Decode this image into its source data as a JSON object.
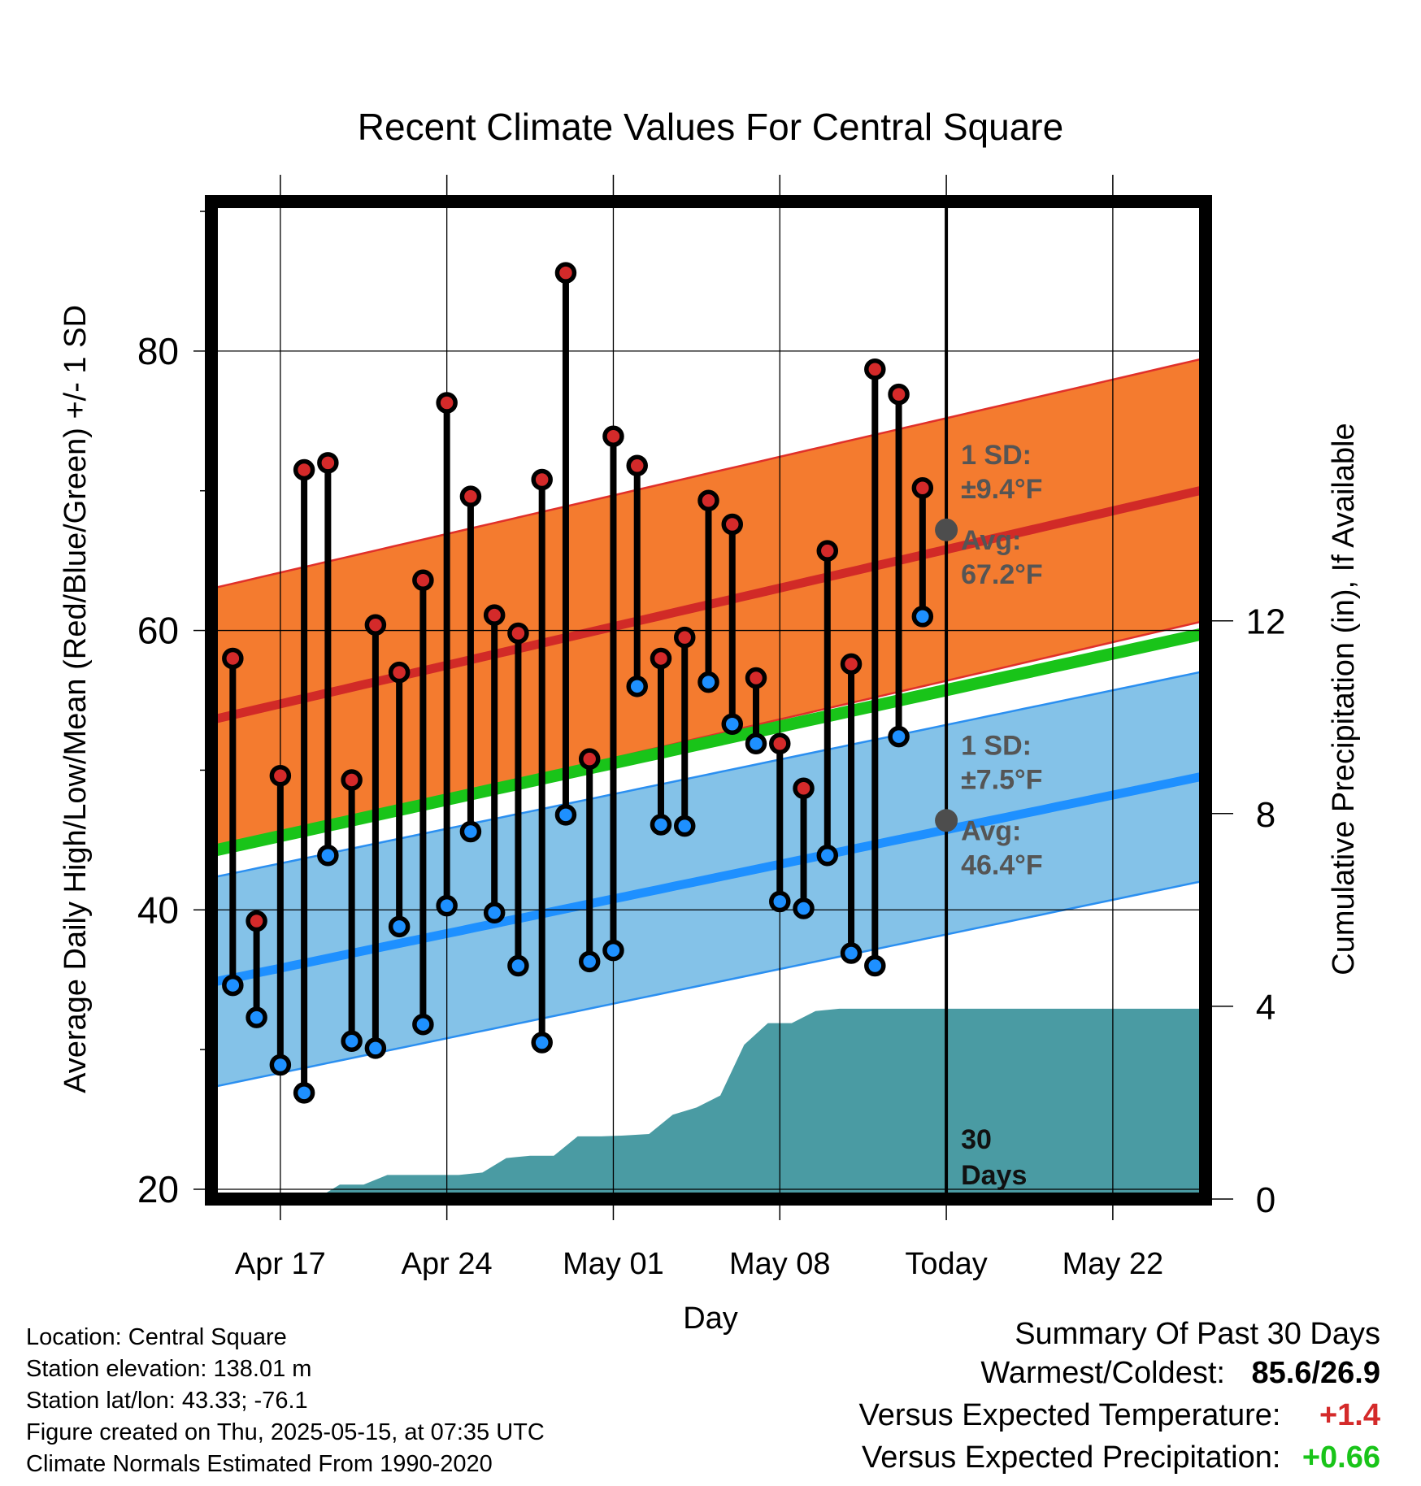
{
  "chart_data": {
    "type": "line",
    "title": "Recent Climate Values For Central Square",
    "xlabel": "Day",
    "ylabel": "Average Daily High/Low/Mean (Red/Blue/Green) +/- 1 SD",
    "y2label": "Cumulative Precipitation (in), If Available",
    "ylim": [
      19.3,
      90.7
    ],
    "y2lim": [
      0,
      20.7
    ],
    "yticks": [
      20,
      40,
      60,
      80
    ],
    "y2ticks": [
      0,
      4,
      8,
      12
    ],
    "xlim": [
      -2.9,
      38.9
    ],
    "xticks": [
      {
        "day": 0,
        "label": "Apr 17"
      },
      {
        "day": 7,
        "label": "Apr 24"
      },
      {
        "day": 14,
        "label": "May 01"
      },
      {
        "day": 21,
        "label": "May 08"
      },
      {
        "day": 28,
        "label": "Today"
      },
      {
        "day": 35,
        "label": "May 22"
      }
    ],
    "today_day": 28,
    "window_label_line1": "30",
    "window_label_line2": "Days",
    "days": [
      -2,
      -1,
      0,
      1,
      2,
      3,
      4,
      5,
      6,
      7,
      8,
      9,
      10,
      11,
      12,
      13,
      14,
      15,
      16,
      17,
      18,
      19,
      20,
      21,
      22,
      23,
      24,
      25,
      26,
      27
    ],
    "daily_high": [
      58.0,
      39.2,
      49.6,
      71.5,
      72.0,
      49.3,
      60.4,
      57.0,
      63.6,
      76.3,
      69.6,
      61.1,
      59.8,
      70.8,
      85.6,
      50.8,
      73.9,
      71.8,
      58.0,
      59.5,
      69.3,
      67.6,
      56.6,
      51.9,
      48.7,
      65.7,
      57.6,
      78.7,
      76.9,
      70.2
    ],
    "daily_low": [
      34.6,
      32.3,
      28.9,
      26.9,
      43.9,
      30.6,
      30.1,
      38.8,
      31.8,
      40.3,
      45.6,
      39.8,
      36.0,
      30.5,
      46.8,
      36.3,
      37.1,
      56.0,
      46.1,
      46.0,
      56.3,
      53.3,
      51.9,
      40.6,
      40.1,
      43.9,
      36.9,
      36.0,
      52.4,
      61.0
    ],
    "normal_high_start": 53.6,
    "normal_high_end": 70.1,
    "normal_low_start": 34.8,
    "normal_low_end": 49.6,
    "normal_mean_start": 44.2,
    "normal_mean_end": 59.8,
    "high_sd": 9.4,
    "low_sd": 7.5,
    "high_sd_label_line1": "1 SD:",
    "high_sd_label_line2": "±9.4°F",
    "high_avg_label_line1": "Avg:",
    "high_avg_label_line2": "67.2°F",
    "high_avg_today": 67.2,
    "low_sd_label_line1": "1 SD:",
    "low_sd_label_line2": "±7.5°F",
    "low_avg_label_line1": "Avg:",
    "low_avg_label_line2": "46.4°F",
    "low_avg_today": 46.4,
    "precip_cumulative": {
      "days": [
        -1.5,
        -0.5,
        0.5,
        1.5,
        2.5,
        3.5,
        4.5,
        5.5,
        6.5,
        7.5,
        8.5,
        9.5,
        10.5,
        11.5,
        12.5,
        13.5,
        14.5,
        15.5,
        16.5,
        17.5,
        18.5,
        19.5,
        20.5,
        21.5,
        22.5,
        23.5,
        24.5,
        25.5,
        26.5,
        27.5,
        28.5,
        38.9
      ],
      "values": [
        0,
        0,
        0,
        0,
        0.3,
        0.3,
        0.5,
        0.5,
        0.5,
        0.5,
        0.55,
        0.85,
        0.9,
        0.9,
        1.3,
        1.3,
        1.32,
        1.35,
        1.75,
        1.9,
        2.15,
        3.2,
        3.65,
        3.65,
        3.9,
        3.95,
        3.95,
        3.95,
        3.95,
        3.95,
        3.95,
        3.95
      ]
    },
    "colors": {
      "high_band": "#f47b2f",
      "high_band_edge": "#e0302a",
      "high_line": "#d12a27",
      "low_band": "#84c2e8",
      "low_band_edge": "#2b8ff0",
      "low_line": "#1e90ff",
      "mean_line": "#19c419",
      "precip": "#4a9ba3",
      "high_marker": "#d42a2a",
      "low_marker": "#1e90ff",
      "avg_marker": "#4d4d4d",
      "annotation": "#555555"
    }
  },
  "footer": {
    "location": "Location: Central Square",
    "elevation": "Station elevation: 138.01 m",
    "latlon": "Station lat/lon: 43.33; -76.1",
    "created": "Figure created on Thu, 2025-05-15, at 07:35 UTC",
    "normals": "Climate Normals Estimated From 1990-2020"
  },
  "summary": {
    "title": "Summary Of Past 30 Days",
    "warm_cold_label": "Warmest/Coldest:",
    "warm_cold_value": "85.6/26.9",
    "temp_label": "Versus Expected Temperature:",
    "temp_value": "+1.4",
    "temp_color": "#d42a2a",
    "precip_label": "Versus Expected Precipitation:",
    "precip_value": "+0.66",
    "precip_color": "#19c419"
  }
}
